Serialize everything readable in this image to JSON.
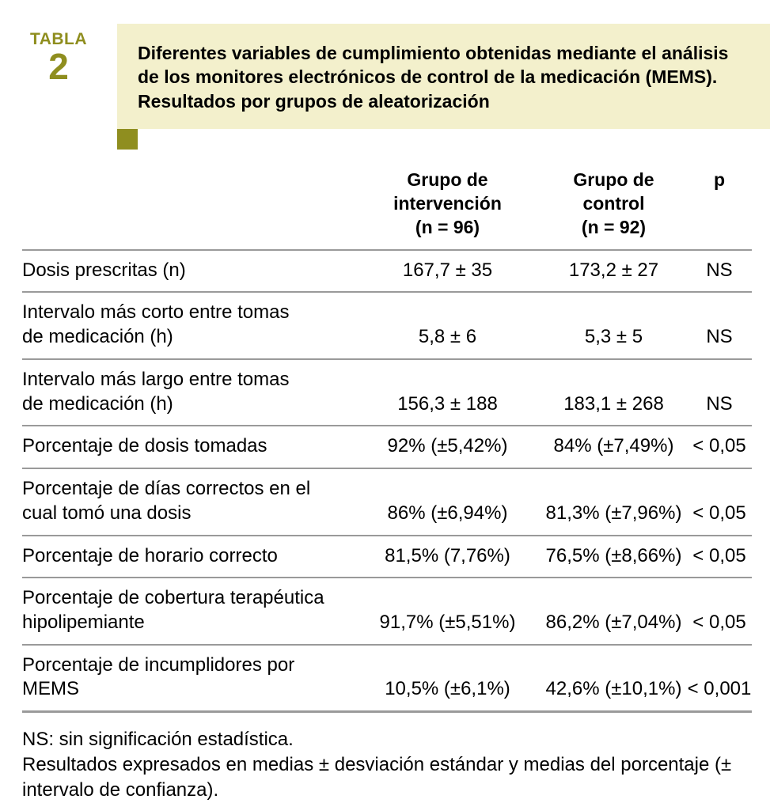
{
  "badge": {
    "word": "TABLA",
    "number": "2"
  },
  "title": "Diferentes variables de cumplimiento obtenidas mediante el análisis de los monitores electrónicos de control de la medicación (MEMS). Resultados por grupos de aleatorización",
  "header": {
    "intervention_line1": "Grupo de intervención",
    "intervention_line2": "(n = 96)",
    "control_line1": "Grupo de control",
    "control_line2": "(n = 92)",
    "p": "p"
  },
  "rows": [
    {
      "label": "Dosis prescritas (n)",
      "intervention": "167,7 ± 35",
      "control": "173,2 ± 27",
      "p": "NS"
    },
    {
      "label": "Intervalo más corto entre tomas\nde medicación (h)",
      "intervention": "5,8 ± 6",
      "control": "5,3 ± 5",
      "p": "NS"
    },
    {
      "label": "Intervalo más largo entre tomas\nde medicación (h)",
      "intervention": "156,3 ± 188",
      "control": "183,1 ± 268",
      "p": "NS"
    },
    {
      "label": "Porcentaje de dosis tomadas",
      "intervention": "92% (±5,42%)",
      "control": "84% (±7,49%)",
      "p": "< 0,05"
    },
    {
      "label": "Porcentaje de días correctos en el\ncual tomó una dosis",
      "intervention": "86% (±6,94%)",
      "control": "81,3% (±7,96%)",
      "p": "< 0,05"
    },
    {
      "label": "Porcentaje de horario correcto",
      "intervention": "81,5% (7,76%)",
      "control": "76,5% (±8,66%)",
      "p": "< 0,05"
    },
    {
      "label": "Porcentaje de cobertura terapéutica\nhipolipemiante",
      "intervention": "91,7% (±5,51%)",
      "control": "86,2% (±7,04%)",
      "p": "< 0,05"
    },
    {
      "label": "Porcentaje de incumplidores por MEMS",
      "intervention": "10,5% (±6,1%)",
      "control": "42,6% (±10,1%)",
      "p": "< 0,001"
    }
  ],
  "notes": {
    "line1": "NS: sin significación estadística.",
    "line2": "Resultados expresados en medias ± desviación estándar y medias del porcentaje (± intervalo de confianza)."
  },
  "colors": {
    "accent": "#8f8e1f",
    "title_background": "#f3f0cc",
    "rule": "#9a9a9a"
  }
}
